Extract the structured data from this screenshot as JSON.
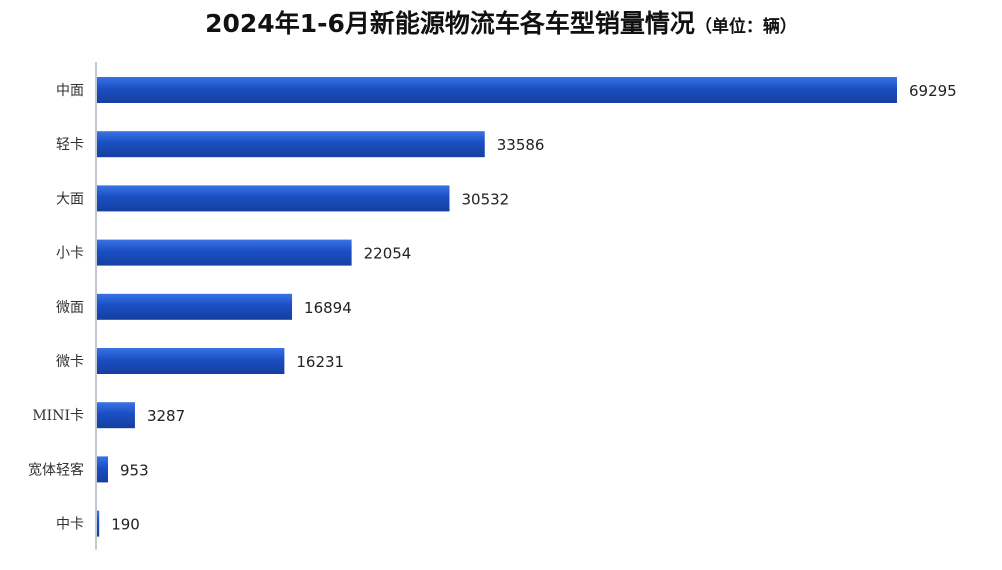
{
  "chart_data": {
    "type": "bar",
    "orientation": "horizontal",
    "title": "2024年1-6月新能源物流车各车型销量情况",
    "subtitle": "（单位：辆）",
    "categories": [
      "中面",
      "轻卡",
      "大面",
      "小卡",
      "微面",
      "微卡",
      "MINI卡",
      "宽体轻客",
      "中卡"
    ],
    "values": [
      69295,
      33586,
      30532,
      22054,
      16894,
      16231,
      3287,
      953,
      190
    ],
    "xlim": [
      0,
      69295
    ],
    "grid": false,
    "legend": "none",
    "colors": {
      "bar": "#1a4fc2",
      "bar_highlight": "#3a72e6",
      "axis": "#9aa3b5"
    }
  }
}
